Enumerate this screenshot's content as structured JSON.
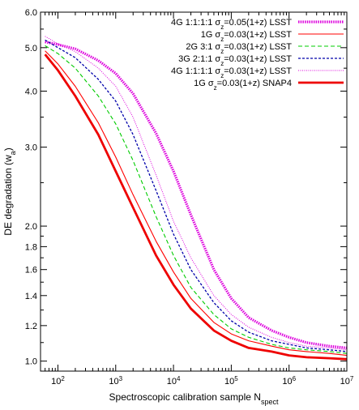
{
  "chart_data": {
    "type": "line",
    "title": "",
    "xlabel": "Spectroscopic calibration sample N",
    "xlabel_subscript": "spect",
    "ylabel": "DE degradation (w",
    "ylabel_subscript": "a",
    "ylabel_suffix": ")",
    "xscale": "log",
    "yscale": "log",
    "xlim": [
      50,
      10000000
    ],
    "ylim": [
      0.95,
      6.0
    ],
    "grid": false,
    "legend_position": "top-right",
    "x_ticks": [
      {
        "value": 100,
        "base": "10",
        "exp": "2"
      },
      {
        "value": 1000,
        "base": "10",
        "exp": "3"
      },
      {
        "value": 10000,
        "base": "10",
        "exp": "4"
      },
      {
        "value": 100000,
        "base": "10",
        "exp": "5"
      },
      {
        "value": 1000000,
        "base": "10",
        "exp": "6"
      },
      {
        "value": 10000000,
        "base": "10",
        "exp": "7"
      }
    ],
    "y_ticks": [
      {
        "value": 1.0,
        "label": "1.0"
      },
      {
        "value": 1.2,
        "label": "1.2"
      },
      {
        "value": 1.4,
        "label": "1.4"
      },
      {
        "value": 1.6,
        "label": "1.6"
      },
      {
        "value": 1.8,
        "label": "1.8"
      },
      {
        "value": 2.0,
        "label": "2.0"
      },
      {
        "value": 3.0,
        "label": "3.0"
      },
      {
        "value": 4.0,
        "label": "4.0"
      },
      {
        "value": 5.0,
        "label": "5.0"
      },
      {
        "value": 6.0,
        "label": "6.0"
      }
    ],
    "series": [
      {
        "name_parts": [
          "4G 1:1:1:1 σ",
          "z",
          "=0.05(1+z) LSST"
        ],
        "color": "#dd00dd",
        "style": "dotted-thick",
        "x": [
          60,
          100,
          200,
          500,
          1000,
          2000,
          5000,
          10000,
          20000,
          50000,
          100000,
          200000,
          500000,
          1000000,
          2000000,
          5000000,
          10000000
        ],
        "y": [
          5.15,
          5.08,
          4.97,
          4.68,
          4.38,
          3.95,
          3.22,
          2.65,
          2.12,
          1.6,
          1.38,
          1.25,
          1.17,
          1.13,
          1.1,
          1.08,
          1.07
        ]
      },
      {
        "name_parts": [
          "1G σ",
          "z",
          "=0.03(1+z) LSST"
        ],
        "color": "#ff0000",
        "style": "solid",
        "x": [
          60,
          100,
          200,
          500,
          1000,
          2000,
          5000,
          10000,
          20000,
          50000,
          100000,
          200000,
          500000,
          1000000,
          2000000,
          5000000,
          10000000
        ],
        "y": [
          4.92,
          4.6,
          4.1,
          3.4,
          2.85,
          2.35,
          1.85,
          1.58,
          1.38,
          1.22,
          1.15,
          1.11,
          1.08,
          1.06,
          1.05,
          1.04,
          1.03
        ]
      },
      {
        "name_parts": [
          "2G 3:1 σ",
          "z",
          "=0.03(1+z) LSST"
        ],
        "color": "#00cc00",
        "style": "dashed",
        "x": [
          60,
          100,
          200,
          500,
          1000,
          2000,
          5000,
          10000,
          20000,
          50000,
          100000,
          200000,
          500000,
          1000000,
          2000000,
          5000000,
          10000000
        ],
        "y": [
          5.05,
          4.85,
          4.5,
          3.9,
          3.38,
          2.8,
          2.1,
          1.72,
          1.46,
          1.27,
          1.18,
          1.13,
          1.09,
          1.07,
          1.06,
          1.05,
          1.04
        ]
      },
      {
        "name_parts": [
          "3G 2:1:1 σ",
          "z",
          "=0.03(1+z) LSST"
        ],
        "color": "#0000aa",
        "style": "dashed-fine",
        "x": [
          60,
          100,
          200,
          500,
          1000,
          2000,
          5000,
          10000,
          20000,
          50000,
          100000,
          200000,
          500000,
          1000000,
          2000000,
          5000000,
          10000000
        ],
        "y": [
          5.2,
          5.0,
          4.75,
          4.25,
          3.8,
          3.2,
          2.4,
          1.92,
          1.6,
          1.35,
          1.23,
          1.16,
          1.11,
          1.09,
          1.07,
          1.06,
          1.05
        ]
      },
      {
        "name_parts": [
          "4G 1:1:1:1 σ",
          "z",
          "=0.03(1+z) LSST"
        ],
        "color": "#dd00dd",
        "style": "dotted",
        "x": [
          60,
          100,
          200,
          500,
          1000,
          2000,
          5000,
          10000,
          20000,
          50000,
          100000,
          200000,
          500000,
          1000000,
          2000000,
          5000000,
          10000000
        ],
        "y": [
          5.3,
          5.1,
          4.9,
          4.5,
          4.1,
          3.5,
          2.6,
          2.05,
          1.7,
          1.4,
          1.27,
          1.19,
          1.13,
          1.1,
          1.08,
          1.07,
          1.06
        ]
      },
      {
        "name_parts": [
          "1G σ",
          "z",
          "=0.03(1+z) SNAP4"
        ],
        "color": "#ee0000",
        "style": "solid-thick",
        "x": [
          60,
          100,
          200,
          500,
          1000,
          2000,
          5000,
          10000,
          20000,
          50000,
          100000,
          200000,
          500000,
          1000000,
          2000000,
          5000000,
          10000000
        ],
        "y": [
          4.83,
          4.45,
          3.9,
          3.2,
          2.65,
          2.2,
          1.72,
          1.48,
          1.31,
          1.17,
          1.11,
          1.07,
          1.05,
          1.03,
          1.02,
          1.015,
          1.01
        ]
      }
    ]
  }
}
